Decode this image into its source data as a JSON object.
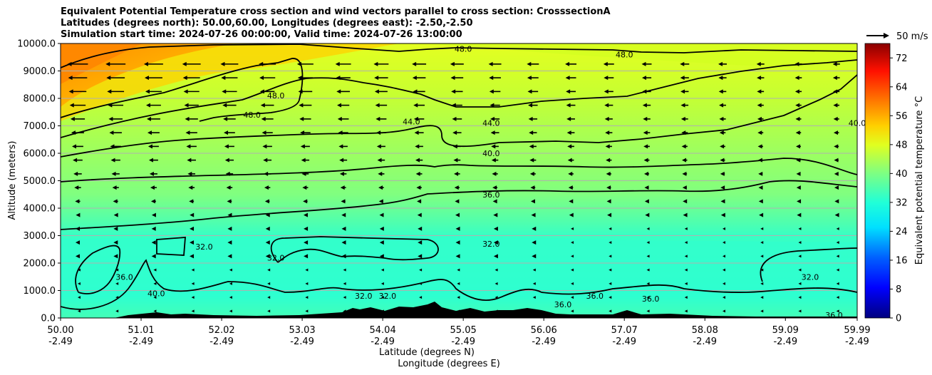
{
  "chart_data": {
    "type": "heatmap",
    "title": "Equivalent Potential Temperature cross section and wind vectors parallel to cross section: CrosssectionA",
    "subtitle_lines": [
      "Latitudes (degrees north): 50.00,60.00, Longitudes (degrees east): -2.50,-2.50",
      "Simulation start time: 2024-07-26 00:00:00, Valid time: 2024-07-26 13:00:00"
    ],
    "ylabel": "Altitude (meters)",
    "xlabel_lines": [
      "Latitude (degrees N)",
      "Longitude (degrees E)"
    ],
    "ylim": [
      0,
      10000
    ],
    "y_ticks": [
      "0.0",
      "1000.0",
      "2000.0",
      "3000.0",
      "4000.0",
      "5000.0",
      "6000.0",
      "7000.0",
      "8000.0",
      "9000.0",
      "10000.0"
    ],
    "x_ticks": [
      {
        "lat": "50.00",
        "lon": "-2.49"
      },
      {
        "lat": "51.01",
        "lon": "-2.49"
      },
      {
        "lat": "52.02",
        "lon": "-2.49"
      },
      {
        "lat": "53.03",
        "lon": "-2.49"
      },
      {
        "lat": "54.04",
        "lon": "-2.49"
      },
      {
        "lat": "55.05",
        "lon": "-2.49"
      },
      {
        "lat": "56.06",
        "lon": "-2.49"
      },
      {
        "lat": "57.07",
        "lon": "-2.49"
      },
      {
        "lat": "58.08",
        "lon": "-2.49"
      },
      {
        "lat": "59.09",
        "lon": "-2.49"
      },
      {
        "lat": "59.99",
        "lon": "-2.49"
      }
    ],
    "grid": true,
    "colorbar": {
      "label": "Equivalent potential temperature °C",
      "ticks": [
        "0",
        "8",
        "16",
        "24",
        "32",
        "40",
        "48",
        "56",
        "64",
        "72"
      ],
      "range": [
        0,
        76
      ],
      "colormap": [
        "#00007f",
        "#0000ff",
        "#0080ff",
        "#00ffff",
        "#80ff80",
        "#ffff00",
        "#ff8000",
        "#ff0000",
        "#7f0000"
      ]
    },
    "quiver_key": "50 m/s",
    "contour_levels": [
      32,
      36,
      40,
      44,
      48
    ],
    "contour_labels": [
      {
        "text": "48.0",
        "lat": 55.05,
        "alt": 9800
      },
      {
        "text": "48.0",
        "lat": 57.07,
        "alt": 9600
      },
      {
        "text": "48.0",
        "lat": 52.7,
        "alt": 8100
      },
      {
        "text": "48.0",
        "lat": 52.4,
        "alt": 7400
      },
      {
        "text": "44.0",
        "lat": 54.4,
        "alt": 7150
      },
      {
        "text": "44.0",
        "lat": 55.4,
        "alt": 7100
      },
      {
        "text": "40.0",
        "lat": 55.4,
        "alt": 6000
      },
      {
        "text": "40.0",
        "lat": 59.99,
        "alt": 7100
      },
      {
        "text": "36.0",
        "lat": 55.4,
        "alt": 4500
      },
      {
        "text": "32.0",
        "lat": 55.4,
        "alt": 2700
      },
      {
        "text": "32.0",
        "lat": 51.8,
        "alt": 2600
      },
      {
        "text": "32.0",
        "lat": 52.7,
        "alt": 2200
      },
      {
        "text": "32.0",
        "lat": 53.8,
        "alt": 800
      },
      {
        "text": "32.0",
        "lat": 54.1,
        "alt": 800
      },
      {
        "text": "36.0",
        "lat": 50.8,
        "alt": 1500
      },
      {
        "text": "40.0",
        "lat": 51.2,
        "alt": 900
      },
      {
        "text": "36.0",
        "lat": 56.3,
        "alt": 500
      },
      {
        "text": "36.0",
        "lat": 56.7,
        "alt": 800
      },
      {
        "text": "36.0",
        "lat": 57.4,
        "alt": 700
      },
      {
        "text": "36.0",
        "lat": 59.7,
        "alt": 100
      },
      {
        "text": "32.0",
        "lat": 59.4,
        "alt": 1500
      }
    ]
  }
}
